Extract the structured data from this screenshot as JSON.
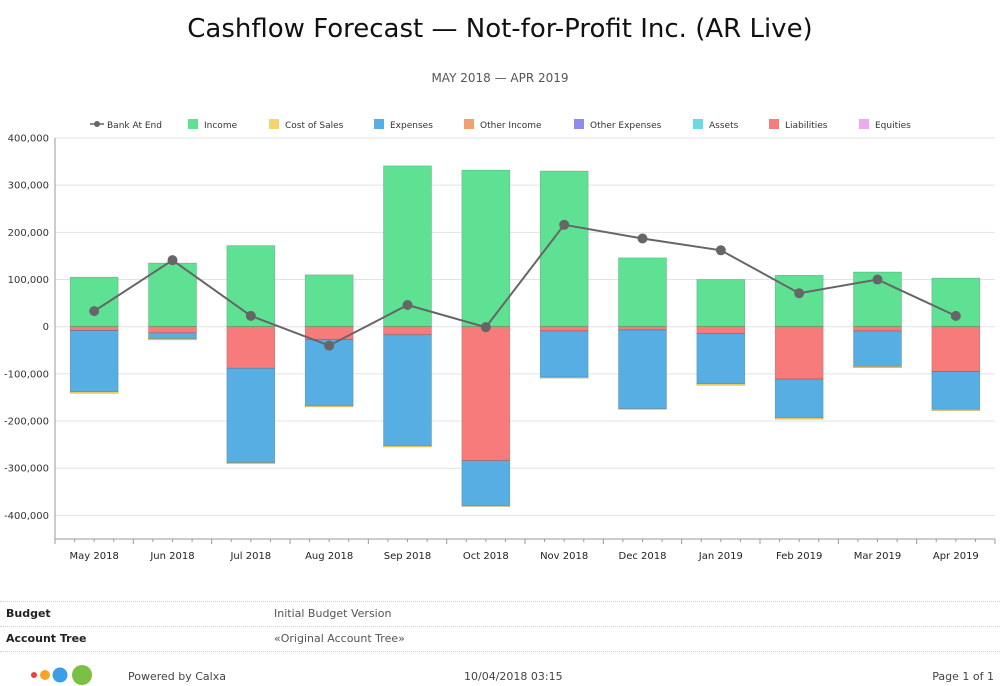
{
  "report": {
    "title": "Cashflow Forecast — Not-for-Profit Inc. (AR Live)",
    "subtitle": "MAY 2018 — APR 2019"
  },
  "chart_data": {
    "type": "bar",
    "stacked": true,
    "categories": [
      "May 2018",
      "Jun 2018",
      "Jul 2018",
      "Aug 2018",
      "Sep 2018",
      "Oct 2018",
      "Nov 2018",
      "Dec 2018",
      "Jan 2019",
      "Feb 2019",
      "Mar 2019",
      "Apr 2019"
    ],
    "legend_position": "top",
    "grid": true,
    "ylim": [
      -450000,
      400000
    ],
    "yticks": [
      400000,
      300000,
      200000,
      100000,
      0,
      -100000,
      -200000,
      -300000,
      -400000
    ],
    "ytick_labels": [
      "400,000",
      "300,000",
      "200,000",
      "100,000",
      "0",
      "-100,000",
      "-200,000",
      "-300,000",
      "-400,000"
    ],
    "legend": [
      "Bank At End",
      "Income",
      "Cost of Sales",
      "Expenses",
      "Other Income",
      "Other Expenses",
      "Assets",
      "Liabilities",
      "Equities"
    ],
    "colors": {
      "Bank At End": "#666666",
      "Income": "#5fe194",
      "Cost of Sales": "#f5d46a",
      "Expenses": "#56aee3",
      "Other Income": "#f3a070",
      "Other Expenses": "#8e8eea",
      "Assets": "#6ed8e0",
      "Liabilities": "#f77b7b",
      "Equities": "#eeaaf0"
    },
    "series": [
      {
        "name": "Income",
        "values": [
          105000,
          135000,
          172000,
          110000,
          341000,
          332000,
          330000,
          146000,
          100000,
          109000,
          116000,
          103000
        ]
      },
      {
        "name": "Cost of Sales",
        "values": [
          -3000,
          -3000,
          -2000,
          -3000,
          -3000,
          -2000,
          -2000,
          -1000,
          -3000,
          -3000,
          -3000,
          -3000
        ]
      },
      {
        "name": "Expenses",
        "values": [
          -130000,
          -12000,
          -200000,
          -140000,
          -235000,
          -95000,
          -98000,
          -167000,
          -107000,
          -82000,
          -75000,
          -80000
        ]
      },
      {
        "name": "Liabilities",
        "values": [
          -8000,
          -13000,
          -88000,
          -27000,
          -17000,
          -284000,
          -9000,
          -7000,
          -14000,
          -111000,
          -9000,
          -95000
        ]
      }
    ],
    "line": {
      "name": "Bank At End",
      "values": [
        33000,
        141000,
        23000,
        -40000,
        46000,
        -1000,
        216000,
        187000,
        162000,
        71000,
        100000,
        23000
      ]
    }
  },
  "info": {
    "budget_label": "Budget",
    "budget_value": "Initial Budget Version",
    "tree_label": "Account Tree",
    "tree_value": "«Original Account Tree»"
  },
  "footer": {
    "powered": "Powered by Calxa",
    "timestamp": "10/04/2018 03:15",
    "page": "Page 1 of 1",
    "logo_colors": [
      "#e8423c",
      "#f5a623",
      "#3b9ee8",
      "#7ac143"
    ]
  }
}
